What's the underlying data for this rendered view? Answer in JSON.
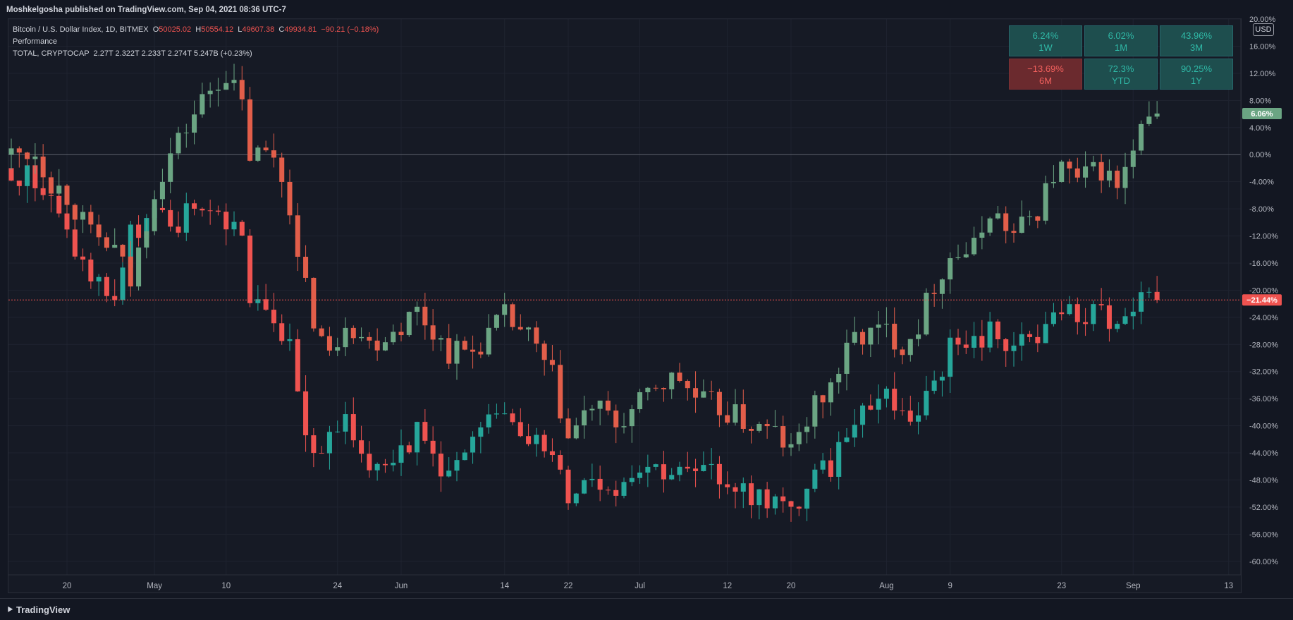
{
  "header": {
    "published": "Moshkelgosha published on TradingView.com, Sep 04, 2021 08:36 UTC-7"
  },
  "legend": {
    "symbol": "Bitcoin / U.S. Dollar Index, 1D, BITMEX",
    "o_label": "O",
    "o_value": "50025.02",
    "h_label": "H",
    "h_value": "50554.12",
    "l_label": "L",
    "l_value": "49607.38",
    "c_label": "C",
    "c_value": "49934.81",
    "change": "−90.21 (−0.18%)",
    "indicator": "Performance",
    "compare": "TOTAL, CRYPTOCAP",
    "compare_values": "2.27T  2.322T  2.233T  2.274T  5.247B (+0.23%)"
  },
  "performance": [
    {
      "value": "6.24%",
      "period": "1W",
      "negative": false
    },
    {
      "value": "6.02%",
      "period": "1M",
      "negative": false
    },
    {
      "value": "43.96%",
      "period": "3M",
      "negative": false
    },
    {
      "value": "−13.69%",
      "period": "6M",
      "negative": true
    },
    {
      "value": "72.3%",
      "period": "YTD",
      "negative": false
    },
    {
      "value": "90.25%",
      "period": "1Y",
      "negative": false
    }
  ],
  "currency": "USD",
  "footer": {
    "brand": "TradingView"
  },
  "colors": {
    "bg": "#131722",
    "grid": "#1f2330",
    "btc_up": "#6ba583",
    "btc_down": "#e25e4a",
    "total_up": "#26a69a",
    "total_down": "#ef5350",
    "badge_green": "#6ba583",
    "badge_red": "#ef5350"
  },
  "chart_data": {
    "type": "candlestick",
    "y_unit": "%",
    "ylim": [
      -62,
      20
    ],
    "y_ticks": [
      20,
      16,
      12,
      8,
      4,
      0,
      -4,
      -8,
      -12,
      -16,
      -20,
      -24,
      -28,
      -32,
      -36,
      -40,
      -44,
      -48,
      -52,
      -56,
      -60
    ],
    "x_ticks": [
      {
        "label": "20",
        "date": "2021-04-20"
      },
      {
        "label": "May",
        "date": "2021-05-01"
      },
      {
        "label": "10",
        "date": "2021-05-10"
      },
      {
        "label": "24",
        "date": "2021-05-24"
      },
      {
        "label": "Jun",
        "date": "2021-06-01"
      },
      {
        "label": "14",
        "date": "2021-06-14"
      },
      {
        "label": "22",
        "date": "2021-06-22"
      },
      {
        "label": "Jul",
        "date": "2021-07-01"
      },
      {
        "label": "12",
        "date": "2021-07-12"
      },
      {
        "label": "20",
        "date": "2021-07-20"
      },
      {
        "label": "Aug",
        "date": "2021-08-01"
      },
      {
        "label": "9",
        "date": "2021-08-09"
      },
      {
        "label": "23",
        "date": "2021-08-23"
      },
      {
        "label": "Sep",
        "date": "2021-09-01"
      },
      {
        "label": "13",
        "date": "2021-09-13"
      }
    ],
    "x_range": [
      "2021-04-13",
      "2021-09-14"
    ],
    "last_values": [
      {
        "series": "Bitcoin / U.S. Dollar Index",
        "label": "6.06%",
        "value": 6.06
      },
      {
        "series": "TOTAL, CRYPTOCAP",
        "label": "−21.44%",
        "value": -21.44
      }
    ],
    "series": [
      {
        "name": "Bitcoin / U.S. Dollar Index",
        "closes": [
          {
            "date": "2021-04-13",
            "value": 0
          },
          {
            "date": "2021-04-16",
            "value": 0.5
          },
          {
            "date": "2021-04-18",
            "value": -4
          },
          {
            "date": "2021-04-20",
            "value": -6
          },
          {
            "date": "2021-04-23",
            "value": -12
          },
          {
            "date": "2021-04-26",
            "value": -14
          },
          {
            "date": "2021-04-28",
            "value": -19
          },
          {
            "date": "2021-05-01",
            "value": -5
          },
          {
            "date": "2021-05-03",
            "value": 0
          },
          {
            "date": "2021-05-05",
            "value": 4
          },
          {
            "date": "2021-05-07",
            "value": 8
          },
          {
            "date": "2021-05-09",
            "value": 11
          },
          {
            "date": "2021-05-10",
            "value": 12
          },
          {
            "date": "2021-05-12",
            "value": 7
          },
          {
            "date": "2021-05-13",
            "value": 0
          },
          {
            "date": "2021-05-16",
            "value": 0
          },
          {
            "date": "2021-05-18",
            "value": -7
          },
          {
            "date": "2021-05-19",
            "value": -16
          },
          {
            "date": "2021-05-21",
            "value": -24
          },
          {
            "date": "2021-05-23",
            "value": -30
          },
          {
            "date": "2021-05-25",
            "value": -24
          },
          {
            "date": "2021-05-28",
            "value": -28
          },
          {
            "date": "2021-06-01",
            "value": -25
          },
          {
            "date": "2021-06-03",
            "value": -23
          },
          {
            "date": "2021-06-07",
            "value": -29
          },
          {
            "date": "2021-06-10",
            "value": -29
          },
          {
            "date": "2021-06-14",
            "value": -24
          },
          {
            "date": "2021-06-17",
            "value": -27
          },
          {
            "date": "2021-06-20",
            "value": -33
          },
          {
            "date": "2021-06-22",
            "value": -42
          },
          {
            "date": "2021-06-25",
            "value": -37
          },
          {
            "date": "2021-06-28",
            "value": -40
          },
          {
            "date": "2021-07-01",
            "value": -37
          },
          {
            "date": "2021-07-03",
            "value": -34
          },
          {
            "date": "2021-07-06",
            "value": -33
          },
          {
            "date": "2021-07-08",
            "value": -36
          },
          {
            "date": "2021-07-12",
            "value": -38
          },
          {
            "date": "2021-07-15",
            "value": -40
          },
          {
            "date": "2021-07-18",
            "value": -41
          },
          {
            "date": "2021-07-20",
            "value": -44
          },
          {
            "date": "2021-07-22",
            "value": -39
          },
          {
            "date": "2021-07-25",
            "value": -34
          },
          {
            "date": "2021-07-28",
            "value": -27
          },
          {
            "date": "2021-08-01",
            "value": -26
          },
          {
            "date": "2021-08-03",
            "value": -28
          },
          {
            "date": "2021-08-05",
            "value": -25
          },
          {
            "date": "2021-08-07",
            "value": -19
          },
          {
            "date": "2021-08-09",
            "value": -15
          },
          {
            "date": "2021-08-12",
            "value": -14
          },
          {
            "date": "2021-08-14",
            "value": -8
          },
          {
            "date": "2021-08-17",
            "value": -12
          },
          {
            "date": "2021-08-20",
            "value": -8
          },
          {
            "date": "2021-08-22",
            "value": -3
          },
          {
            "date": "2021-08-23",
            "value": -2
          },
          {
            "date": "2021-08-25",
            "value": -4
          },
          {
            "date": "2021-08-28",
            "value": -2
          },
          {
            "date": "2021-08-30",
            "value": -5
          },
          {
            "date": "2021-09-01",
            "value": 0
          },
          {
            "date": "2021-09-02",
            "value": 3
          },
          {
            "date": "2021-09-04",
            "value": 6.06
          }
        ]
      },
      {
        "name": "TOTAL, CRYPTOCAP",
        "closes": [
          {
            "date": "2021-04-13",
            "value": -2
          },
          {
            "date": "2021-04-16",
            "value": -4
          },
          {
            "date": "2021-04-18",
            "value": -7
          },
          {
            "date": "2021-04-20",
            "value": -12
          },
          {
            "date": "2021-04-23",
            "value": -18
          },
          {
            "date": "2021-04-26",
            "value": -21
          },
          {
            "date": "2021-04-28",
            "value": -12
          },
          {
            "date": "2021-05-01",
            "value": -9
          },
          {
            "date": "2021-05-03",
            "value": -11
          },
          {
            "date": "2021-05-05",
            "value": -9
          },
          {
            "date": "2021-05-07",
            "value": -7
          },
          {
            "date": "2021-05-09",
            "value": -9
          },
          {
            "date": "2021-05-10",
            "value": -10
          },
          {
            "date": "2021-05-12",
            "value": -11
          },
          {
            "date": "2021-05-13",
            "value": -22
          },
          {
            "date": "2021-05-16",
            "value": -24
          },
          {
            "date": "2021-05-18",
            "value": -29
          },
          {
            "date": "2021-05-19",
            "value": -36
          },
          {
            "date": "2021-05-21",
            "value": -44
          },
          {
            "date": "2021-05-23",
            "value": -42
          },
          {
            "date": "2021-05-25",
            "value": -40
          },
          {
            "date": "2021-05-28",
            "value": -45
          },
          {
            "date": "2021-06-01",
            "value": -43
          },
          {
            "date": "2021-06-03",
            "value": -41
          },
          {
            "date": "2021-06-07",
            "value": -47
          },
          {
            "date": "2021-06-10",
            "value": -43
          },
          {
            "date": "2021-06-14",
            "value": -37
          },
          {
            "date": "2021-06-17",
            "value": -41
          },
          {
            "date": "2021-06-20",
            "value": -45
          },
          {
            "date": "2021-06-22",
            "value": -50
          },
          {
            "date": "2021-06-25",
            "value": -47
          },
          {
            "date": "2021-06-28",
            "value": -49
          },
          {
            "date": "2021-07-01",
            "value": -45
          },
          {
            "date": "2021-07-03",
            "value": -46
          },
          {
            "date": "2021-07-06",
            "value": -47
          },
          {
            "date": "2021-07-08",
            "value": -47
          },
          {
            "date": "2021-07-12",
            "value": -48
          },
          {
            "date": "2021-07-15",
            "value": -50
          },
          {
            "date": "2021-07-18",
            "value": -51
          },
          {
            "date": "2021-07-20",
            "value": -53
          },
          {
            "date": "2021-07-22",
            "value": -49
          },
          {
            "date": "2021-07-25",
            "value": -46
          },
          {
            "date": "2021-07-28",
            "value": -38
          },
          {
            "date": "2021-08-01",
            "value": -35
          },
          {
            "date": "2021-08-03",
            "value": -38
          },
          {
            "date": "2021-08-05",
            "value": -38
          },
          {
            "date": "2021-08-07",
            "value": -33
          },
          {
            "date": "2021-08-09",
            "value": -29
          },
          {
            "date": "2021-08-12",
            "value": -28
          },
          {
            "date": "2021-08-14",
            "value": -26
          },
          {
            "date": "2021-08-17",
            "value": -28
          },
          {
            "date": "2021-08-20",
            "value": -28
          },
          {
            "date": "2021-08-22",
            "value": -23
          },
          {
            "date": "2021-08-23",
            "value": -23
          },
          {
            "date": "2021-08-25",
            "value": -24
          },
          {
            "date": "2021-08-28",
            "value": -23
          },
          {
            "date": "2021-08-30",
            "value": -26
          },
          {
            "date": "2021-09-01",
            "value": -24
          },
          {
            "date": "2021-09-02",
            "value": -22
          },
          {
            "date": "2021-09-04",
            "value": -21.44
          }
        ]
      }
    ]
  }
}
